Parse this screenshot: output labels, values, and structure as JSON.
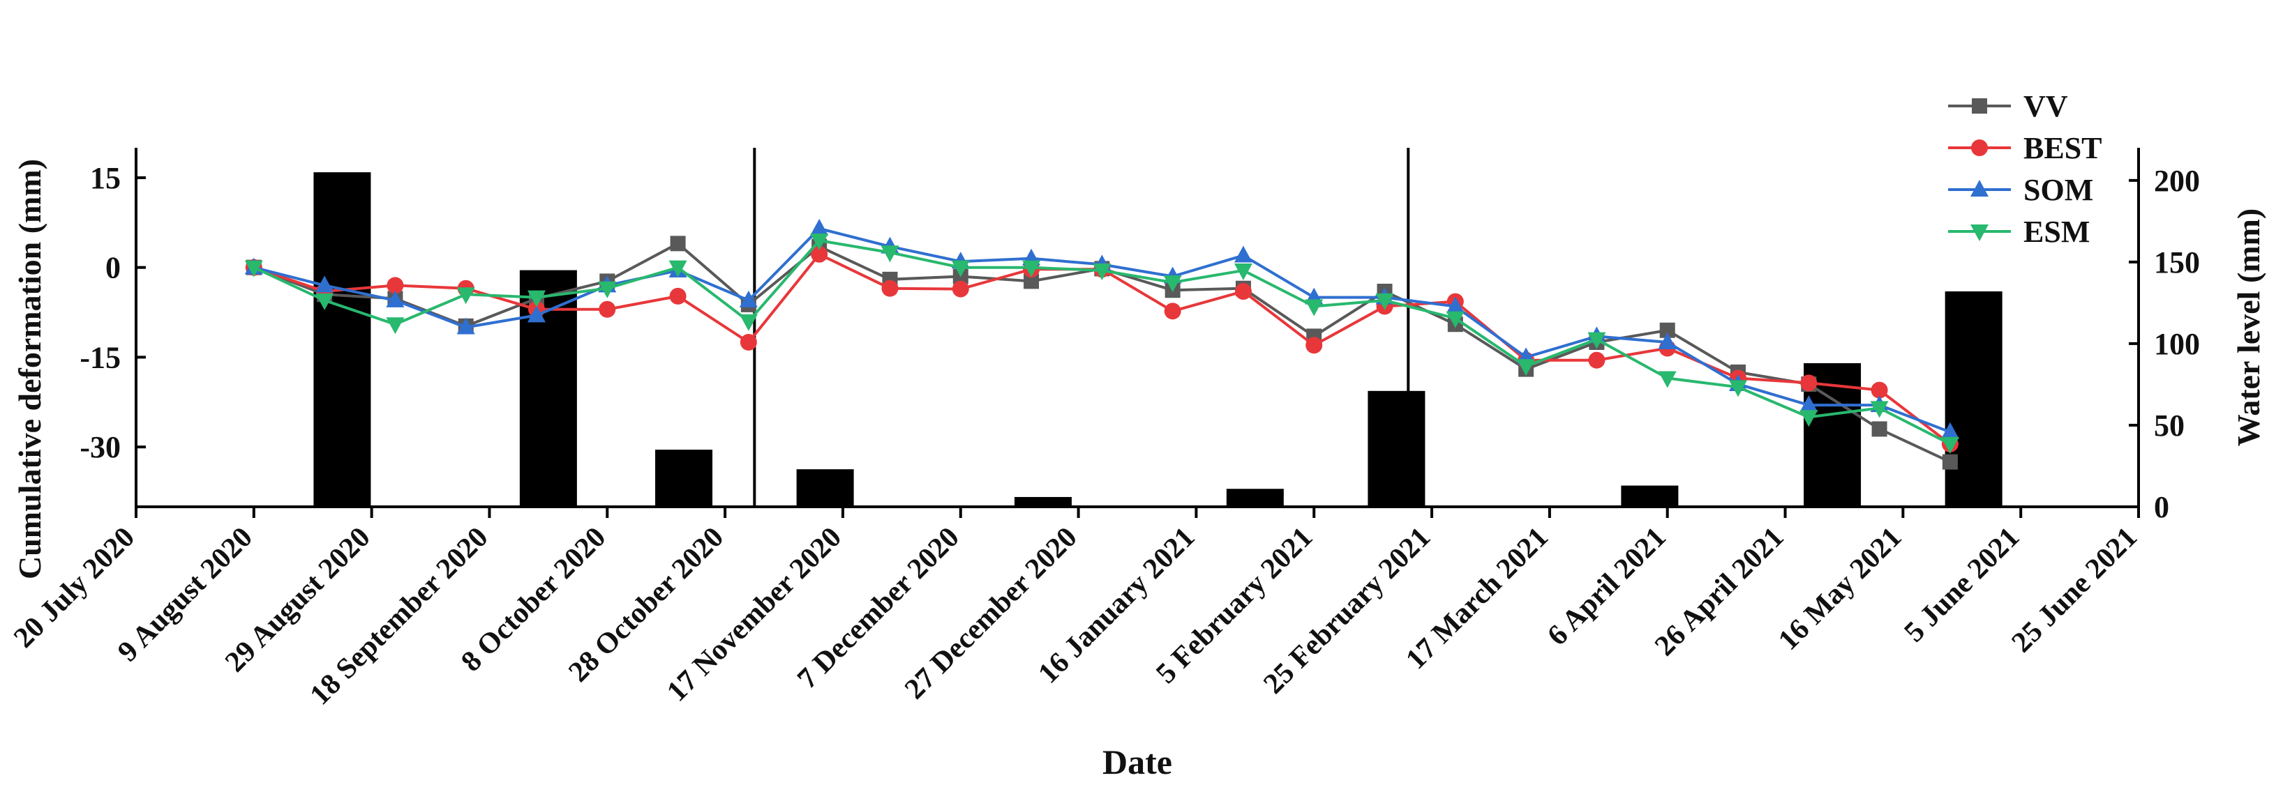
{
  "chart_data": {
    "type": "line",
    "xlabel": "Date",
    "ylabel_left": "Cumulative deformation (mm)",
    "ylabel_right": "Water level (mm)",
    "x_ticks": [
      "20 July  2020",
      "9 August 2020",
      "29 August 2020",
      "18 September 2020",
      "8 October 2020",
      "28 October 2020",
      "17 November  2020",
      "7 December 2020",
      "27 December 2020",
      "16 January 2021",
      "5 February 2021",
      "25 February 2021",
      "17 March 2021",
      "6 April 2021",
      "26 April 2021",
      "16 May 2021",
      "5 June 2021",
      "25 June 2021"
    ],
    "x_range": [
      "2020-07-20",
      "2021-06-25"
    ],
    "y_left": {
      "range": [
        -40,
        20
      ],
      "ticks": [
        15,
        0,
        -15,
        -30
      ]
    },
    "y_right": {
      "range": [
        0,
        220
      ],
      "ticks": [
        0,
        50,
        100,
        150,
        200
      ]
    },
    "x": [
      "2020-08-09",
      "2020-08-21",
      "2020-09-02",
      "2020-09-14",
      "2020-09-26",
      "2020-10-08",
      "2020-10-20",
      "2020-11-01",
      "2020-11-13",
      "2020-11-25",
      "2020-12-07",
      "2020-12-19",
      "2020-12-31",
      "2021-01-12",
      "2021-01-24",
      "2021-02-05",
      "2021-02-17",
      "2021-03-01",
      "2021-03-13",
      "2021-03-25",
      "2021-04-06",
      "2021-04-18",
      "2021-04-30",
      "2021-05-12",
      "2021-05-24"
    ],
    "series": [
      {
        "name": "VV",
        "color": "#595959",
        "marker": "square",
        "values": [
          0,
          -4.5,
          -5.2,
          -9.8,
          -5.2,
          -2.3,
          4.0,
          -6.2,
          3.5,
          -2.0,
          -1.5,
          -2.3,
          -0.2,
          -3.8,
          -3.5,
          -11.5,
          -4.0,
          -9.5,
          -17.0,
          -12.5,
          -10.5,
          -17.5,
          -19.5,
          -27.0,
          -32.5
        ]
      },
      {
        "name": "BEST",
        "color": "#e8373a",
        "marker": "circle",
        "values": [
          0,
          -4.0,
          -3.0,
          -3.5,
          -7.0,
          -7.0,
          -4.8,
          -12.5,
          2.2,
          -3.5,
          -3.6,
          -0.3,
          -0.3,
          -7.3,
          -4.0,
          -13.0,
          -6.5,
          -5.7,
          -15.5,
          -15.5,
          -13.5,
          -18.5,
          -19.3,
          -20.5,
          -29.5
        ]
      },
      {
        "name": "SOM",
        "color": "#2f6fd0",
        "marker": "triangle-up",
        "values": [
          0,
          -3.0,
          -5.5,
          -10.0,
          -8.0,
          -3.0,
          -0.5,
          -5.5,
          6.5,
          3.5,
          1.0,
          1.5,
          0.5,
          -1.5,
          2.0,
          -5.0,
          -5.0,
          -6.5,
          -15.0,
          -11.5,
          -12.5,
          -19.5,
          -23.0,
          -23.0,
          -27.5
        ]
      },
      {
        "name": "ESM",
        "color": "#28b86e",
        "marker": "triangle-down",
        "values": [
          0,
          -5.5,
          -9.5,
          -4.5,
          -5.0,
          -3.5,
          0.0,
          -9.0,
          4.5,
          2.5,
          0.0,
          0.0,
          -0.5,
          -2.5,
          -0.5,
          -6.5,
          -5.5,
          -8.5,
          -16.5,
          -12.0,
          -18.5,
          -20.0,
          -25.0,
          -23.5,
          -29.5
        ]
      }
    ],
    "bars": {
      "axis": "right",
      "x": [
        "2020-08-24",
        "2020-09-28",
        "2020-10-21",
        "2020-11-14",
        "2020-12-21",
        "2021-01-26",
        "2021-02-19",
        "2021-04-03",
        "2021-05-04",
        "2021-05-28"
      ],
      "values": [
        205,
        145,
        35,
        23,
        6,
        11,
        71,
        13,
        88,
        132
      ],
      "color": "#000000"
    },
    "vertical_lines": [
      "2020-11-02",
      "2021-02-21"
    ],
    "legend": {
      "position": "top-right",
      "entries": [
        "VV",
        "BEST",
        "SOM",
        "ESM"
      ]
    },
    "grid": false
  }
}
